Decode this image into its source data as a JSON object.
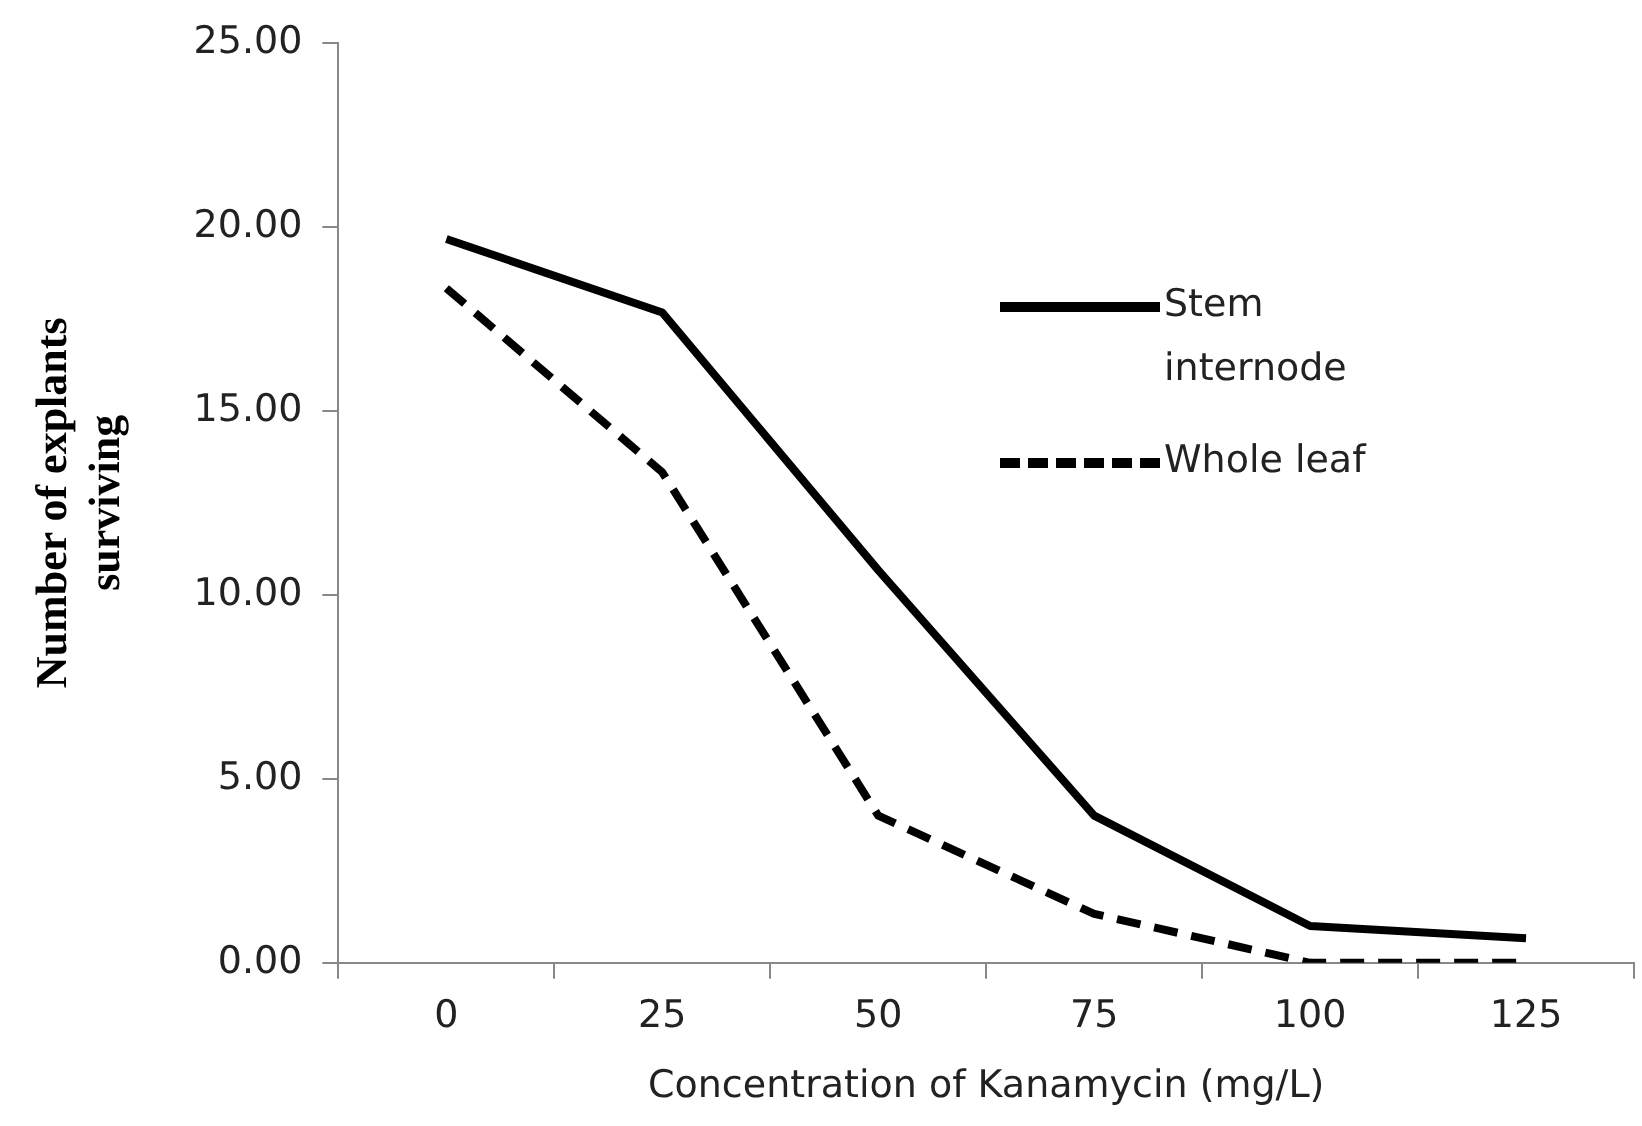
{
  "chart_data": {
    "type": "line",
    "xlabel": "Concentration of Kanamycin (mg/L)",
    "ylabel": "Number of explants surviving",
    "categories": [
      "0",
      "25",
      "50",
      "75",
      "100",
      "125"
    ],
    "series": [
      {
        "name": "Stem internode",
        "color": "#000000",
        "line_style": "solid",
        "values": [
          19.67,
          17.67,
          10.67,
          4.0,
          1.0,
          0.67
        ]
      },
      {
        "name": "Whole leaf",
        "color": "#000000",
        "line_style": "dashed",
        "values": [
          18.33,
          13.33,
          4.0,
          1.33,
          0,
          0
        ]
      }
    ],
    "ylim": [
      0,
      25
    ],
    "yticks": [
      {
        "value": 0,
        "label": "0.00"
      },
      {
        "value": 5,
        "label": "5.00"
      },
      {
        "value": 10,
        "label": "10.00"
      },
      {
        "value": 15,
        "label": "15.00"
      },
      {
        "value": 20,
        "label": "20.00"
      },
      {
        "value": 25,
        "label": "25.00"
      }
    ],
    "grid": false,
    "legend": "top right",
    "marker": "none"
  }
}
